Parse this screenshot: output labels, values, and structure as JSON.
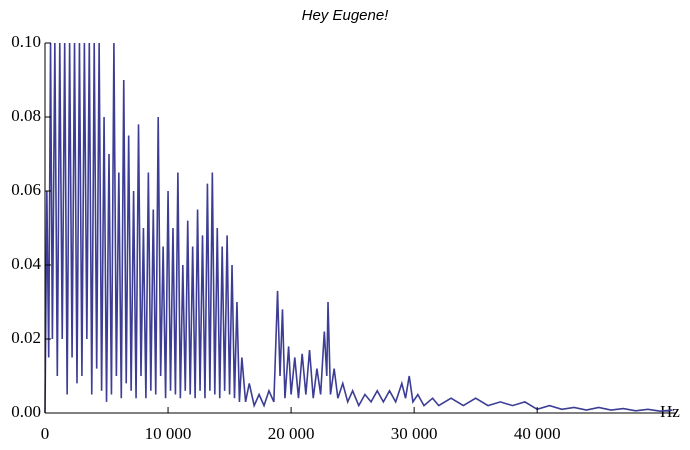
{
  "chart_data": {
    "type": "line",
    "title": "Hey Eugene!",
    "x_label": "Hz",
    "color": "#3d3d95",
    "x": [
      0,
      150,
      300,
      450,
      600,
      800,
      1000,
      1200,
      1400,
      1600,
      1800,
      2000,
      2200,
      2400,
      2600,
      2800,
      3000,
      3200,
      3400,
      3600,
      3800,
      4000,
      4200,
      4400,
      4600,
      4800,
      5000,
      5200,
      5400,
      5600,
      5800,
      6000,
      6200,
      6400,
      6600,
      6800,
      7000,
      7200,
      7400,
      7600,
      7800,
      8000,
      8200,
      8400,
      8600,
      8800,
      9000,
      9200,
      9400,
      9600,
      9800,
      10000,
      10200,
      10400,
      10600,
      10800,
      11000,
      11200,
      11400,
      11600,
      11800,
      12000,
      12200,
      12400,
      12600,
      12800,
      13000,
      13200,
      13400,
      13600,
      13800,
      14000,
      14200,
      14400,
      14600,
      14800,
      15000,
      15200,
      15400,
      15600,
      15800,
      16000,
      16300,
      16600,
      17000,
      17400,
      17800,
      18200,
      18600,
      18900,
      19100,
      19300,
      19500,
      19800,
      20000,
      20300,
      20600,
      20900,
      21200,
      21500,
      21800,
      22100,
      22400,
      22700,
      22900,
      23000,
      23200,
      23500,
      23800,
      24200,
      24600,
      25000,
      25500,
      26000,
      26500,
      27000,
      27500,
      28000,
      28500,
      29000,
      29300,
      29600,
      29900,
      30300,
      30800,
      31500,
      32000,
      33000,
      34000,
      35000,
      36000,
      37000,
      38000,
      39000,
      40000,
      41000,
      42000,
      43000,
      44000,
      45000,
      46000,
      47000,
      48000,
      49000,
      50000,
      51000
    ],
    "values": [
      0.0,
      0.06,
      0.015,
      0.1,
      0.02,
      0.1,
      0.01,
      0.1,
      0.02,
      0.1,
      0.005,
      0.1,
      0.015,
      0.1,
      0.008,
      0.1,
      0.01,
      0.1,
      0.02,
      0.1,
      0.005,
      0.1,
      0.012,
      0.1,
      0.006,
      0.08,
      0.003,
      0.07,
      0.005,
      0.1,
      0.01,
      0.065,
      0.004,
      0.09,
      0.008,
      0.075,
      0.006,
      0.06,
      0.004,
      0.078,
      0.01,
      0.05,
      0.004,
      0.065,
      0.006,
      0.055,
      0.005,
      0.08,
      0.01,
      0.045,
      0.004,
      0.06,
      0.006,
      0.05,
      0.005,
      0.065,
      0.004,
      0.04,
      0.006,
      0.052,
      0.005,
      0.045,
      0.004,
      0.055,
      0.006,
      0.048,
      0.004,
      0.062,
      0.006,
      0.065,
      0.005,
      0.05,
      0.004,
      0.045,
      0.006,
      0.048,
      0.005,
      0.04,
      0.004,
      0.03,
      0.003,
      0.015,
      0.003,
      0.008,
      0.002,
      0.005,
      0.002,
      0.006,
      0.003,
      0.033,
      0.01,
      0.028,
      0.004,
      0.018,
      0.005,
      0.015,
      0.004,
      0.016,
      0.005,
      0.017,
      0.004,
      0.012,
      0.005,
      0.022,
      0.01,
      0.03,
      0.005,
      0.012,
      0.004,
      0.008,
      0.003,
      0.006,
      0.002,
      0.005,
      0.003,
      0.006,
      0.003,
      0.006,
      0.003,
      0.008,
      0.004,
      0.01,
      0.003,
      0.005,
      0.002,
      0.004,
      0.002,
      0.004,
      0.002,
      0.004,
      0.002,
      0.003,
      0.002,
      0.003,
      0.001,
      0.002,
      0.001,
      0.0015,
      0.0008,
      0.0015,
      0.0008,
      0.0012,
      0.0006,
      0.001,
      0.0005,
      0.0008
    ],
    "xlim": [
      0,
      51200
    ],
    "ylim": [
      0,
      0.1
    ],
    "xticks": [
      0,
      {
        "value": 10000,
        "label": "10 000"
      },
      {
        "value": 20000,
        "label": "20 000"
      },
      {
        "value": 30000,
        "label": "30 000"
      },
      {
        "value": 40000,
        "label": "40 000"
      }
    ],
    "yticks": [
      {
        "value": 0,
        "label": "0.00"
      },
      {
        "value": 0.02,
        "label": "0.02"
      },
      {
        "value": 0.04,
        "label": "0.04"
      },
      {
        "value": 0.06,
        "label": "0.06"
      },
      {
        "value": 0.08,
        "label": "0.08"
      },
      {
        "value": 0.1,
        "label": "0.10"
      }
    ]
  }
}
